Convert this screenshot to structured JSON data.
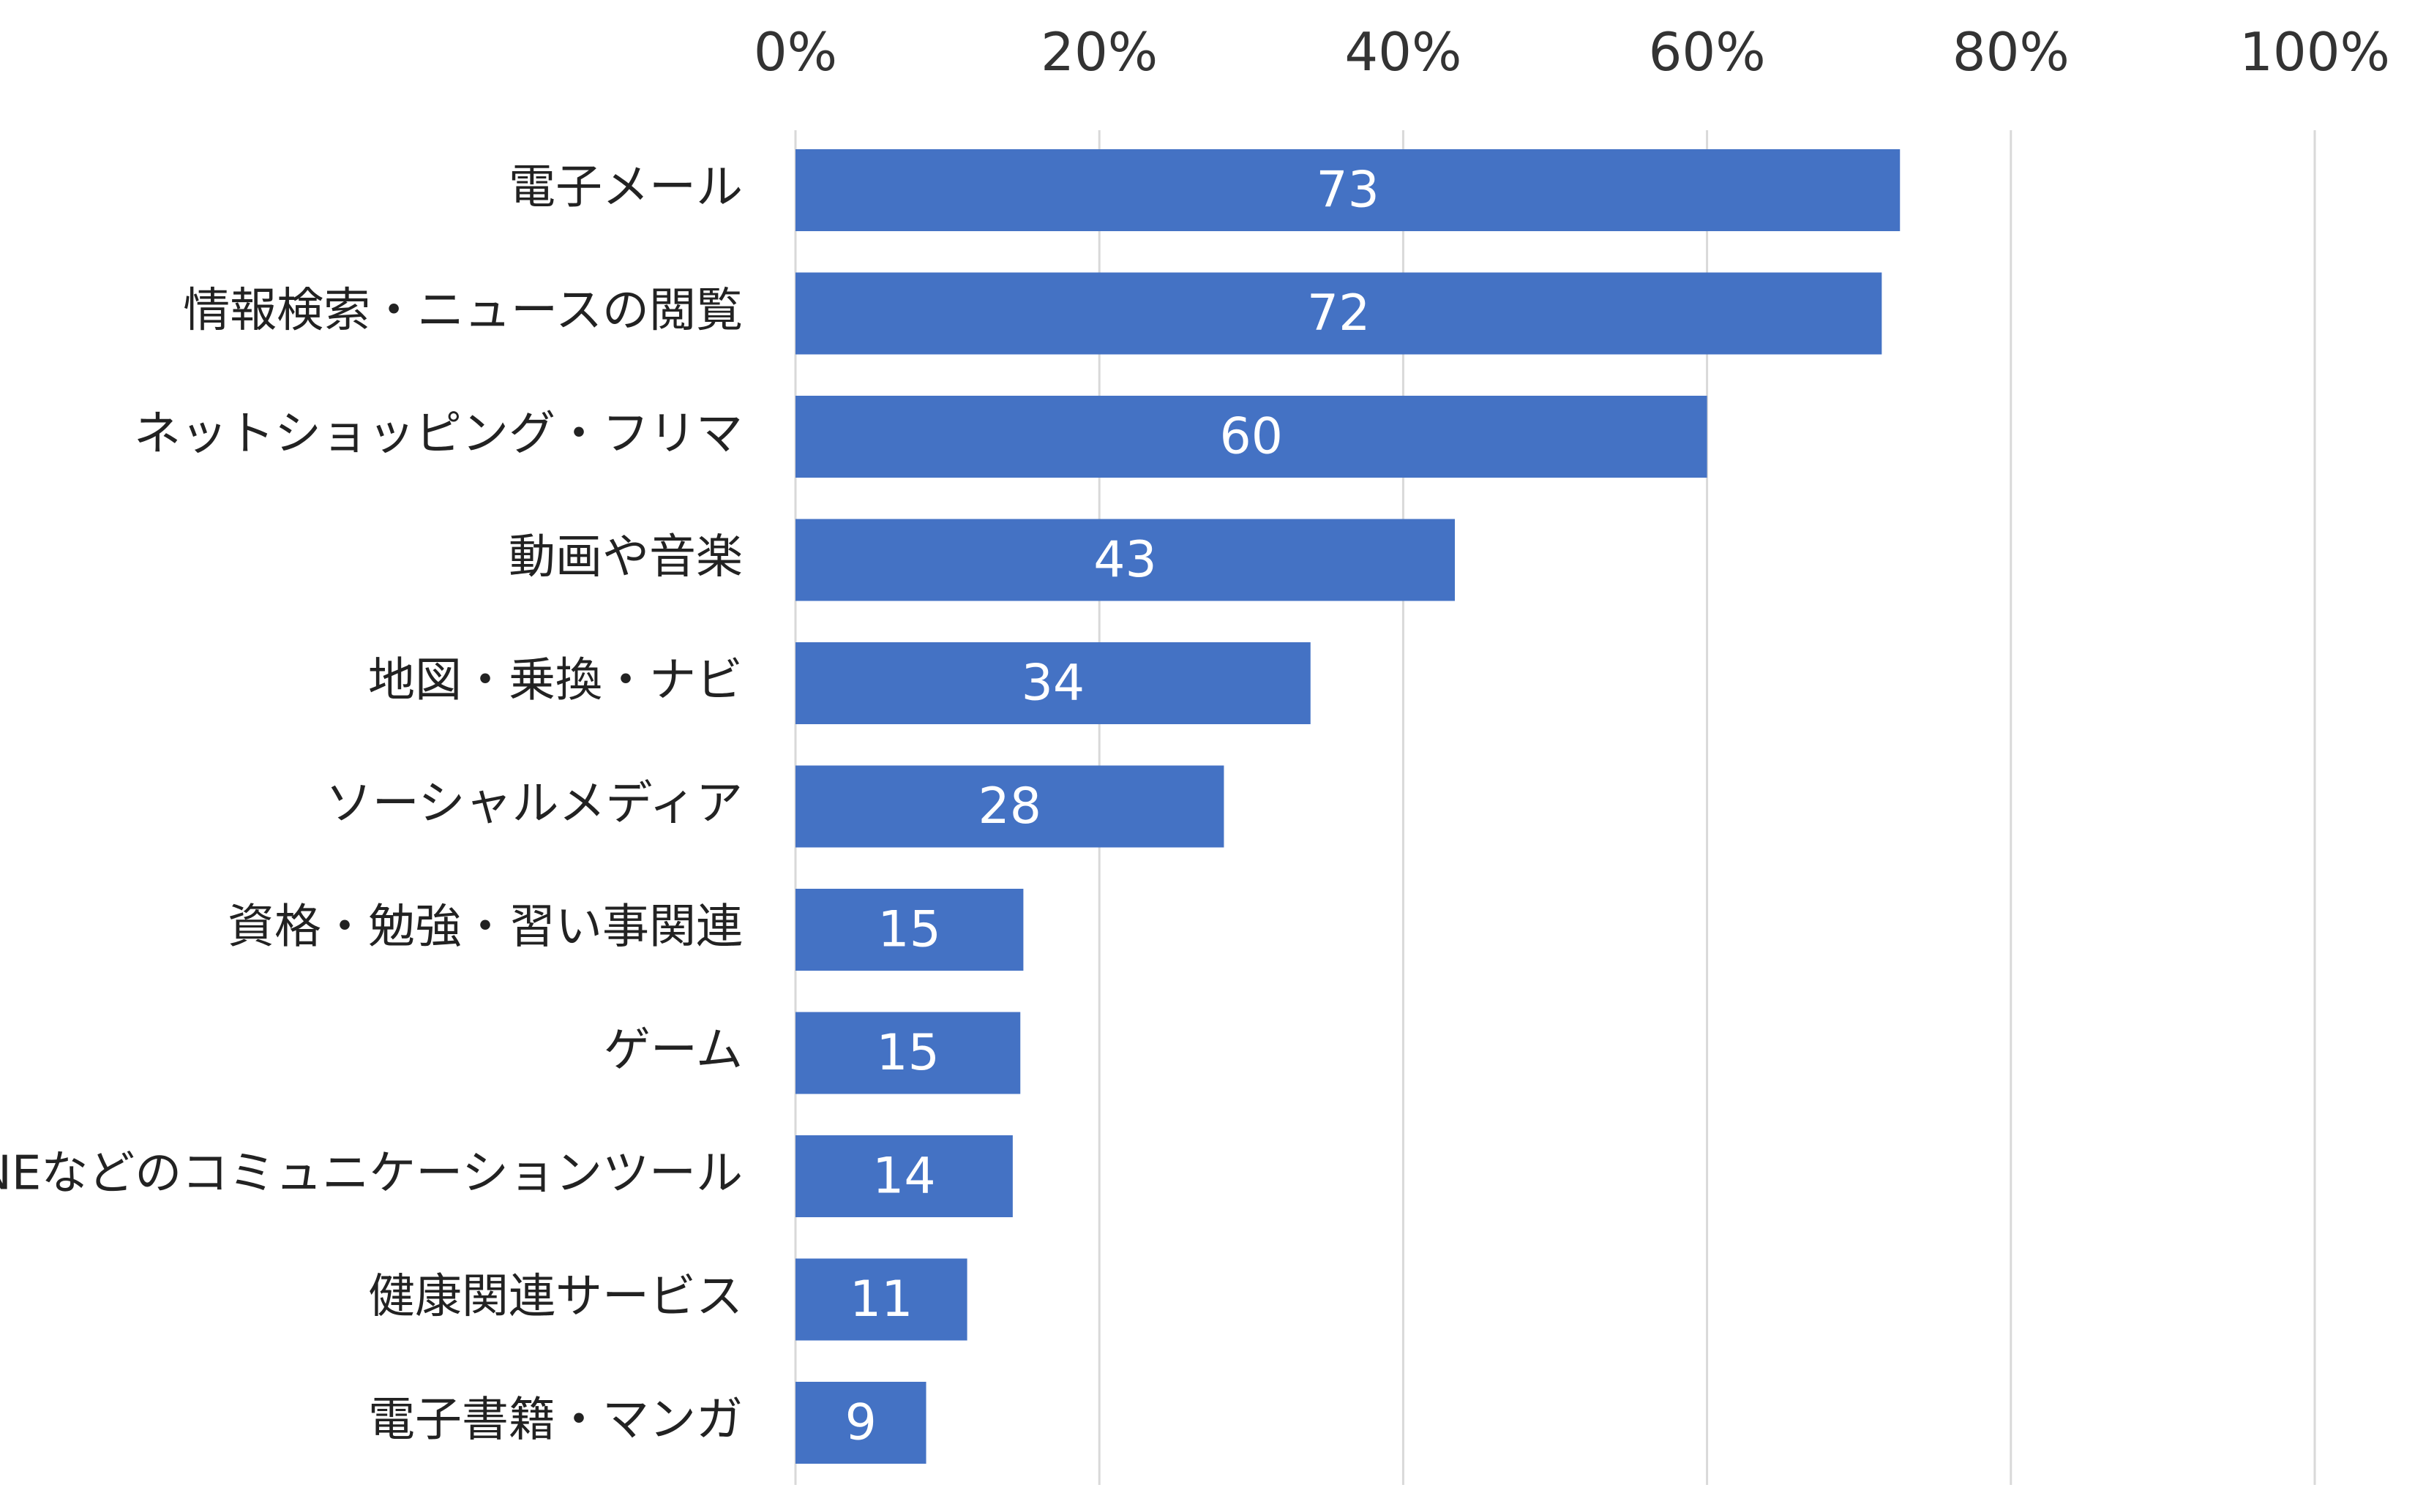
{
  "chart_data": {
    "type": "bar",
    "orientation": "horizontal",
    "title": "",
    "xlabel": "",
    "ylabel": "",
    "xlim": [
      0,
      100
    ],
    "x_ticks": [
      "0%",
      "20%",
      "40%",
      "60%",
      "80%",
      "100%"
    ],
    "x_tick_values": [
      0,
      20,
      40,
      60,
      80,
      100
    ],
    "x_axis_position": "top",
    "grid": true,
    "legend": "none",
    "bar_color": "#4472C4",
    "categories": [
      "電子メール",
      "情報検索・ニュースの閲覧",
      "ネットショッピング・フリマ",
      "動画や音楽",
      "地図・乗換・ナビ",
      "ソーシャルメディア",
      "資格・勉強・習い事関連",
      "ゲーム",
      "LINEなどのコミュニケーションツール",
      "健康関連サービス",
      "電子書籍・マンガ"
    ],
    "values": [
      72.7,
      71.5,
      60,
      43.4,
      33.9,
      28.2,
      15,
      14.8,
      14.3,
      11.3,
      8.6
    ],
    "data_labels": [
      "73",
      "72",
      "60",
      "43",
      "34",
      "28",
      "15",
      "15",
      "14",
      "11",
      "9"
    ]
  }
}
